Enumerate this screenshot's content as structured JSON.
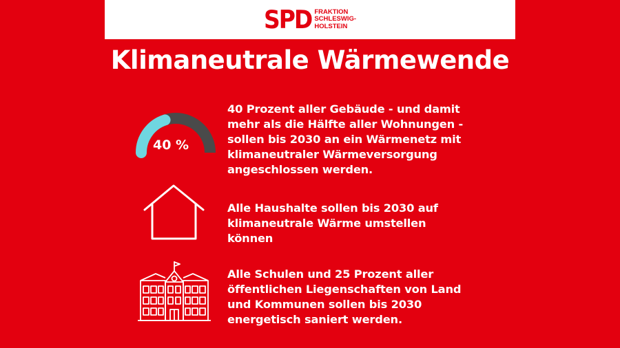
{
  "logo": {
    "mark": "SPD",
    "lines": [
      "FRAKTION",
      "SCHLESWIG-",
      "HOLSTEIN"
    ]
  },
  "title": "Klimaneutrale Wärmewende",
  "items": [
    {
      "icon": "gauge-icon",
      "gauge_label": "40 %",
      "gauge_percent": 40,
      "lines": [
        "40 Prozent aller Gebäude - und damit",
        "mehr als die Hälfte aller Wohnungen -",
        "sollen bis 2030 an ein Wärmenetz mit",
        "klimaneutraler Wärmeversorgung",
        "angeschlossen werden."
      ]
    },
    {
      "icon": "house-icon",
      "lines": [
        "Alle Haushalte sollen bis 2030 auf",
        "klimaneutrale Wärme umstellen",
        "können"
      ]
    },
    {
      "icon": "school-building-icon",
      "lines": [
        "Alle Schulen und 25 Prozent aller",
        "öffentlichen Liegenschaften von Land",
        "und Kommunen sollen bis 2030",
        "energetisch saniert werden."
      ]
    }
  ],
  "colors": {
    "background": "#e3000f",
    "text": "#ffffff",
    "gauge_fill": "#6fd6e0",
    "gauge_track": "#4a4a4a"
  }
}
